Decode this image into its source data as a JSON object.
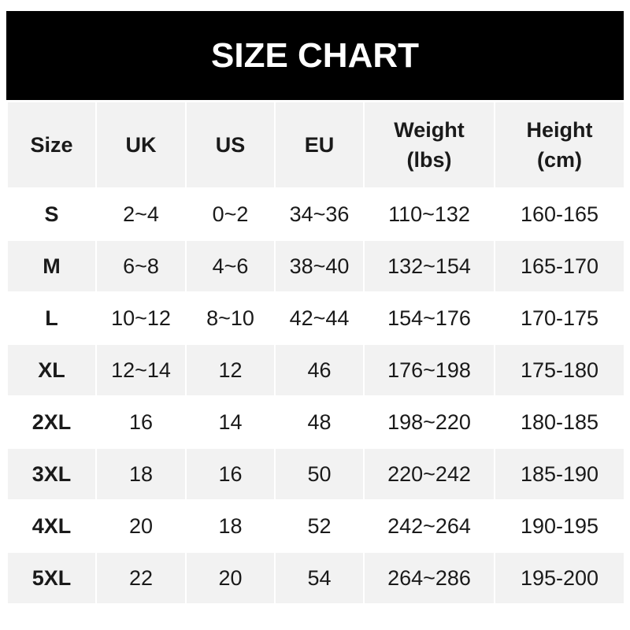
{
  "title": "SIZE CHART",
  "headers": [
    [
      "Size"
    ],
    [
      "UK"
    ],
    [
      "US"
    ],
    [
      "EU"
    ],
    [
      "Weight",
      "(lbs)"
    ],
    [
      "Height",
      "(cm)"
    ]
  ],
  "rows": [
    [
      "S",
      "2~4",
      "0~2",
      "34~36",
      "110~132",
      "160-165"
    ],
    [
      "M",
      "6~8",
      "4~6",
      "38~40",
      "132~154",
      "165-170"
    ],
    [
      "L",
      "10~12",
      "8~10",
      "42~44",
      "154~176",
      "170-175"
    ],
    [
      "XL",
      "12~14",
      "12",
      "46",
      "176~198",
      "175-180"
    ],
    [
      "2XL",
      "16",
      "14",
      "48",
      "198~220",
      "180-185"
    ],
    [
      "3XL",
      "18",
      "16",
      "50",
      "220~242",
      "185-190"
    ],
    [
      "4XL",
      "20",
      "18",
      "52",
      "242~264",
      "190-195"
    ],
    [
      "5XL",
      "22",
      "20",
      "54",
      "264~286",
      "195-200"
    ]
  ],
  "colors": {
    "header_bg": "#000000",
    "stripe": "#f2f2f2"
  }
}
